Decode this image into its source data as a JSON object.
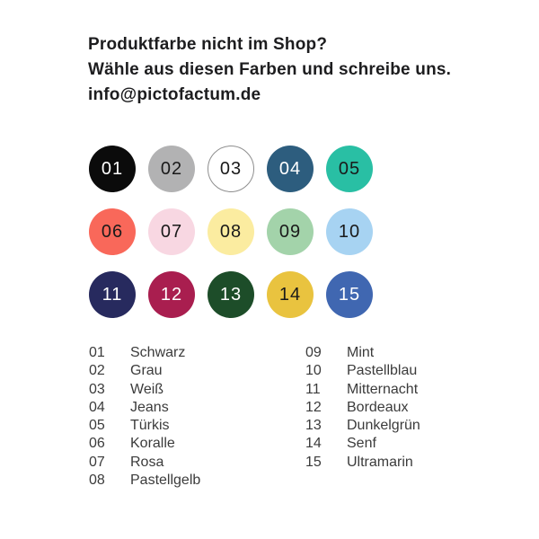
{
  "header": {
    "line1": "Produktfarbe nicht im Shop?",
    "line2": "Wähle aus diesen Farben und schreibe uns.",
    "email": "info@pictofactum.de"
  },
  "palette_colors": {
    "header_text": "#1d1d1f",
    "legend_text": "#3b3b3b",
    "dark_digit": "#1a1a1a",
    "light_digit": "#ffffff"
  },
  "colors": [
    {
      "num": "01",
      "name": "Schwarz",
      "fill": "#0b0b0b",
      "text": "#ffffff"
    },
    {
      "num": "02",
      "name": "Grau",
      "fill": "#b2b2b3",
      "text": "#1a1a1a"
    },
    {
      "num": "03",
      "name": "Weiß",
      "fill": "#ffffff",
      "text": "#1a1a1a",
      "border": "#8e8e8e"
    },
    {
      "num": "04",
      "name": "Jeans",
      "fill": "#2d5d7e",
      "text": "#ffffff"
    },
    {
      "num": "05",
      "name": "Türkis",
      "fill": "#29bfa4",
      "text": "#1a1a1a"
    },
    {
      "num": "06",
      "name": "Koralle",
      "fill": "#f9685a",
      "text": "#1a1a1a"
    },
    {
      "num": "07",
      "name": "Rosa",
      "fill": "#f8d7e2",
      "text": "#1a1a1a"
    },
    {
      "num": "08",
      "name": "Pastellgelb",
      "fill": "#fbeca0",
      "text": "#1a1a1a"
    },
    {
      "num": "09",
      "name": "Mint",
      "fill": "#a3d3aa",
      "text": "#1a1a1a"
    },
    {
      "num": "10",
      "name": "Pastellblau",
      "fill": "#a7d3f2",
      "text": "#1a1a1a"
    },
    {
      "num": "11",
      "name": "Mitternacht",
      "fill": "#272a5e",
      "text": "#ffffff"
    },
    {
      "num": "12",
      "name": "Bordeaux",
      "fill": "#a91e4f",
      "text": "#ffffff"
    },
    {
      "num": "13",
      "name": "Dunkelgrün",
      "fill": "#1d4d29",
      "text": "#ffffff"
    },
    {
      "num": "14",
      "name": "Senf",
      "fill": "#e9c33f",
      "text": "#1a1a1a"
    },
    {
      "num": "15",
      "name": "Ultramarin",
      "fill": "#4067b1",
      "text": "#ffffff"
    }
  ],
  "legend": {
    "column_split_index": 8
  }
}
